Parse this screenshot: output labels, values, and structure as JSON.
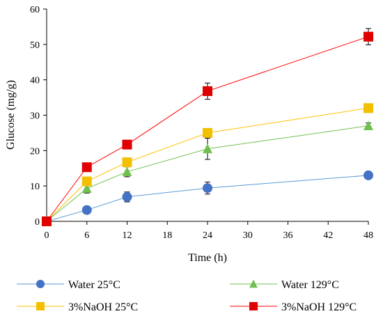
{
  "chart_data": {
    "type": "line",
    "title": "",
    "xlabel": "Time (h)",
    "ylabel": "Glucose (mg/g)",
    "xlim": [
      0,
      48
    ],
    "ylim": [
      0,
      60
    ],
    "xticks": [
      0,
      6,
      12,
      18,
      24,
      30,
      36,
      42,
      48
    ],
    "yticks": [
      0,
      10,
      20,
      30,
      40,
      50,
      60
    ],
    "grid": false,
    "legend_position": "bottom",
    "series": [
      {
        "name": "Water 25°C",
        "marker": "circle",
        "color": "#4472C4",
        "line_color": "#5B9BD5",
        "x": [
          0,
          6,
          12,
          24,
          48
        ],
        "y": [
          0,
          3.2,
          6.9,
          9.4,
          13.0
        ],
        "err": [
          0,
          0.4,
          1.4,
          1.7,
          0.7
        ]
      },
      {
        "name": "Water 129°C",
        "marker": "triangle",
        "color": "#70C050",
        "line_color": "#70C050",
        "x": [
          0,
          6,
          12,
          24,
          48
        ],
        "y": [
          0,
          9.3,
          14.0,
          20.5,
          27.0
        ],
        "err": [
          0,
          1.3,
          1.4,
          3.0,
          0.8
        ]
      },
      {
        "name": "3%NaOH 25°C",
        "marker": "square",
        "color": "#F2C000",
        "line_color": "#FFC000",
        "x": [
          0,
          6,
          12,
          24,
          48
        ],
        "y": [
          0,
          11.3,
          16.7,
          25.0,
          32.0
        ],
        "err": [
          0,
          0.5,
          0.6,
          0.7,
          0.8
        ]
      },
      {
        "name": "3%NaOH 129°C",
        "marker": "square",
        "color": "#E00000",
        "line_color": "#FF0000",
        "x": [
          0,
          6,
          12,
          24,
          48
        ],
        "y": [
          0,
          15.3,
          21.7,
          36.8,
          52.2
        ],
        "err": [
          0,
          0.5,
          0.6,
          2.3,
          2.3
        ]
      }
    ]
  }
}
